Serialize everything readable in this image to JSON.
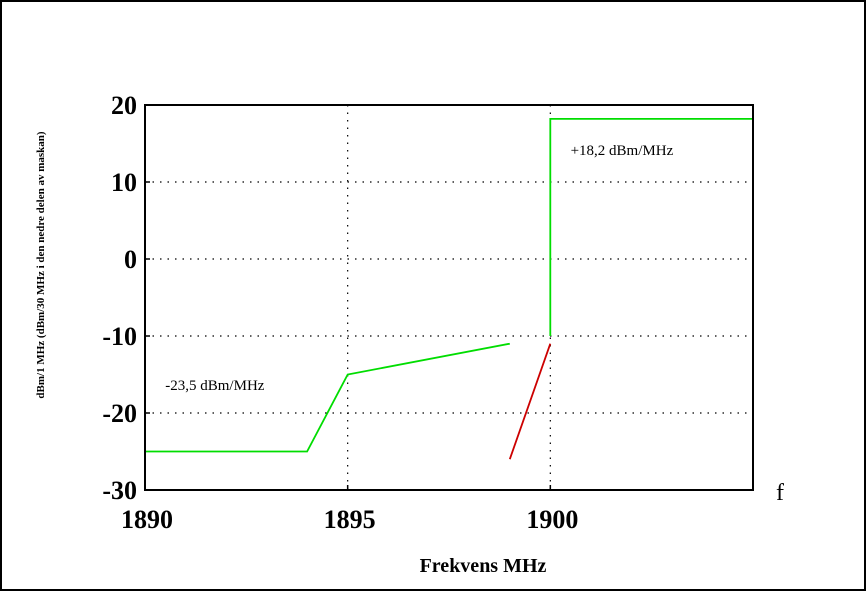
{
  "chart_data": {
    "type": "line",
    "xlabel": "Frekvens MHz",
    "ylabel": "dBm/1 MHz (dBm/30 MHz i den nedre delen av maskan)",
    "x_axis_symbol": "f",
    "xlim": [
      1890,
      1905
    ],
    "ylim": [
      -30,
      20
    ],
    "x_ticks": [
      "1890",
      "1895",
      "1900"
    ],
    "y_ticks": [
      "20",
      "10",
      "0",
      "-10",
      "-20",
      "-30"
    ],
    "x_tick_values": [
      1890,
      1895,
      1900
    ],
    "y_tick_values": [
      20,
      10,
      0,
      -10,
      -20,
      -30
    ],
    "grid": true,
    "series": [
      {
        "color": "#00dd00",
        "x": [
          1890,
          1894,
          1895,
          1899
        ],
        "y": [
          -25,
          -25,
          -15,
          -11
        ]
      },
      {
        "color": "#00dd00",
        "x": [
          1900,
          1900,
          1905
        ],
        "y": [
          -10,
          18.2,
          18.2
        ]
      },
      {
        "color": "#cc0000",
        "x": [
          1899,
          1900
        ],
        "y": [
          -26,
          -11
        ]
      }
    ],
    "annotations": [
      {
        "text": "-23,5 dBm/MHz",
        "x": 1890.5,
        "y": -17
      },
      {
        "text": "+18,2 dBm/MHz",
        "x": 1900.5,
        "y": 13.5
      }
    ]
  }
}
